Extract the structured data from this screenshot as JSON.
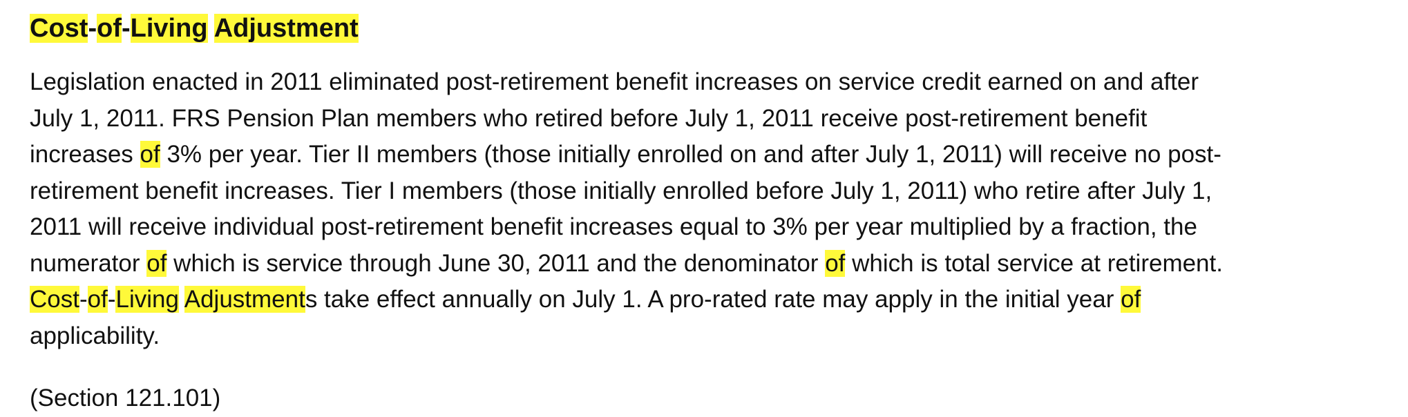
{
  "document": {
    "highlight_color": "#fff93a",
    "heading": [
      {
        "text": "Cost",
        "hl": true
      },
      {
        "text": "-",
        "hl": false
      },
      {
        "text": "of",
        "hl": true
      },
      {
        "text": "-",
        "hl": false
      },
      {
        "text": "Living",
        "hl": true
      },
      {
        "text": " ",
        "hl": false
      },
      {
        "text": "Adjustment",
        "hl": true
      }
    ],
    "paragraph_lines": [
      [
        {
          "text": "Legislation enacted in 2011 eliminated post-retirement benefit increases on service credit earned on and after",
          "hl": false
        }
      ],
      [
        {
          "text": "July 1, 2011. FRS Pension Plan members who retired before July 1, 2011 receive post-retirement benefit",
          "hl": false
        }
      ],
      [
        {
          "text": "increases ",
          "hl": false
        },
        {
          "text": "of",
          "hl": true
        },
        {
          "text": " 3% per year. Tier II members (those initially enrolled on and after July 1, 2011) will receive no post-",
          "hl": false
        }
      ],
      [
        {
          "text": "retirement benefit increases. Tier I members (those initially enrolled before July 1, 2011) who retire after July 1,",
          "hl": false
        }
      ],
      [
        {
          "text": "2011 will receive individual post-retirement benefit increases equal to 3% per year multiplied by a fraction, the",
          "hl": false
        }
      ],
      [
        {
          "text": "numerator ",
          "hl": false
        },
        {
          "text": "of",
          "hl": true
        },
        {
          "text": " which is service through June 30, 2011 and the denominator ",
          "hl": false
        },
        {
          "text": "of",
          "hl": true
        },
        {
          "text": " which is total service at retirement.",
          "hl": false
        }
      ],
      [
        {
          "text": "Cost",
          "hl": true
        },
        {
          "text": "-",
          "hl": false
        },
        {
          "text": "of",
          "hl": true
        },
        {
          "text": "-",
          "hl": false
        },
        {
          "text": "Living",
          "hl": true
        },
        {
          "text": " ",
          "hl": false
        },
        {
          "text": "Adjustment",
          "hl": true
        },
        {
          "text": "s take effect annually on July 1. A pro-rated rate may apply in the initial year ",
          "hl": false
        },
        {
          "text": "of",
          "hl": true
        }
      ],
      [
        {
          "text": "applicability.",
          "hl": false
        }
      ]
    ],
    "section_reference": "(Section 121.101)"
  }
}
